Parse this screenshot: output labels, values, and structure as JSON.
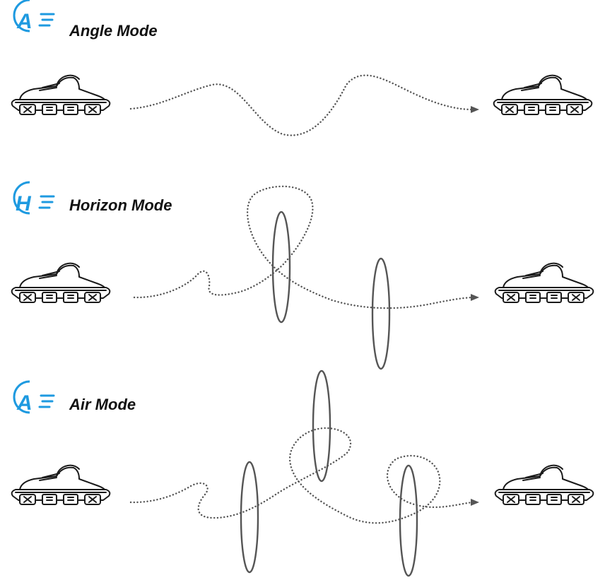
{
  "accent_color": "#1e9ae0",
  "modes": [
    {
      "badge_letter": "A",
      "title": "Angle  Mode",
      "badge_icon": "angle-mode-badge-icon",
      "maneuvers": []
    },
    {
      "badge_letter": "H",
      "title": "Horizon Mode",
      "badge_icon": "horizon-mode-badge-icon",
      "maneuvers": [
        "roll",
        "roll"
      ]
    },
    {
      "badge_letter": "A",
      "title": "Air Mode",
      "badge_icon": "air-mode-badge-icon",
      "maneuvers": [
        "roll",
        "roll",
        "roll"
      ]
    }
  ],
  "icons": {
    "drone": "drone-icon",
    "arrow": "arrow-head-icon"
  }
}
